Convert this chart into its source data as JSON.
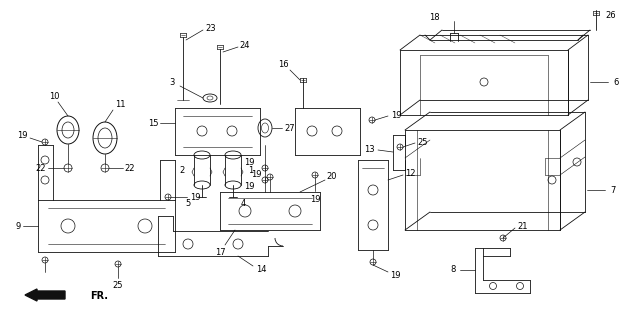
{
  "bg_color": "#ffffff",
  "line_color": "#111111",
  "fig_width": 6.28,
  "fig_height": 3.2,
  "dpi": 100,
  "xmax": 628,
  "ymax": 320
}
